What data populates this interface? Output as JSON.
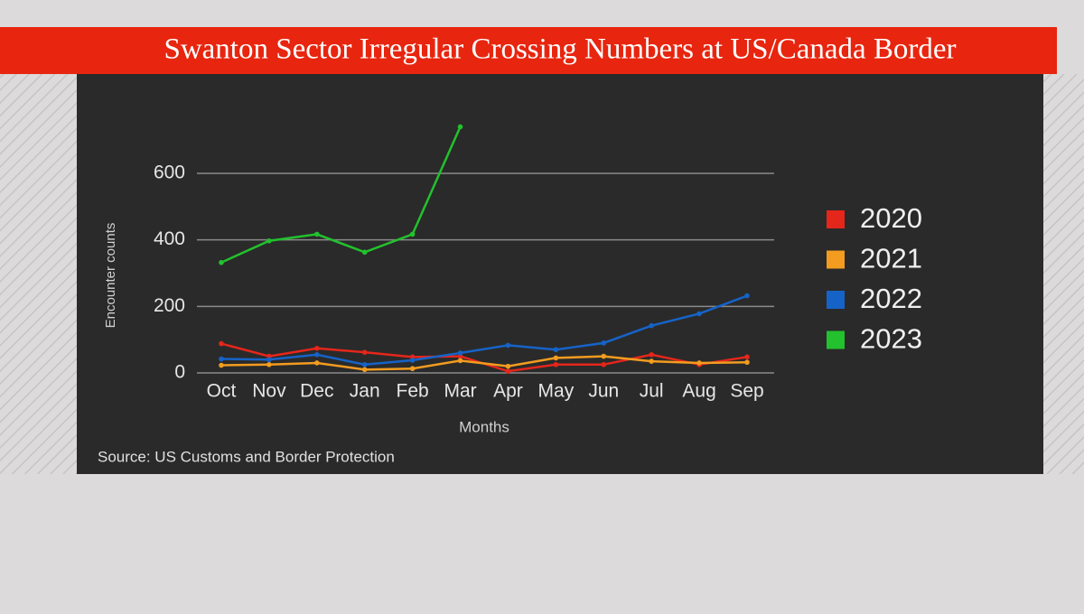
{
  "chart_data": {
    "type": "line",
    "title": "Swanton Sector Irregular Crossing Numbers at US/Canada Border",
    "x_label": "Months",
    "y_label": "Encounter counts",
    "source": "Source: US Customs and Border Protection",
    "categories": [
      "Oct",
      "Nov",
      "Dec",
      "Jan",
      "Feb",
      "Mar",
      "Apr",
      "May",
      "Jun",
      "Jul",
      "Aug",
      "Sep"
    ],
    "series": [
      {
        "name": "2020",
        "color": "#e5261b",
        "values": [
          88,
          50,
          74,
          62,
          48,
          50,
          5,
          25,
          25,
          55,
          25,
          48
        ]
      },
      {
        "name": "2021",
        "color": "#f39c1f",
        "values": [
          23,
          25,
          30,
          10,
          13,
          37,
          20,
          45,
          50,
          35,
          30,
          32
        ]
      },
      {
        "name": "2022",
        "color": "#1663c7",
        "values": [
          42,
          40,
          55,
          25,
          38,
          60,
          83,
          70,
          90,
          142,
          178,
          232
        ]
      },
      {
        "name": "2023",
        "color": "#22c12d",
        "values": [
          332,
          397,
          417,
          363,
          417,
          740,
          null,
          null,
          null,
          null,
          null,
          null
        ]
      }
    ],
    "ylim": [
      0,
      750
    ],
    "yticks": [
      0,
      200,
      400,
      600
    ],
    "grid": true,
    "legend": "right"
  }
}
